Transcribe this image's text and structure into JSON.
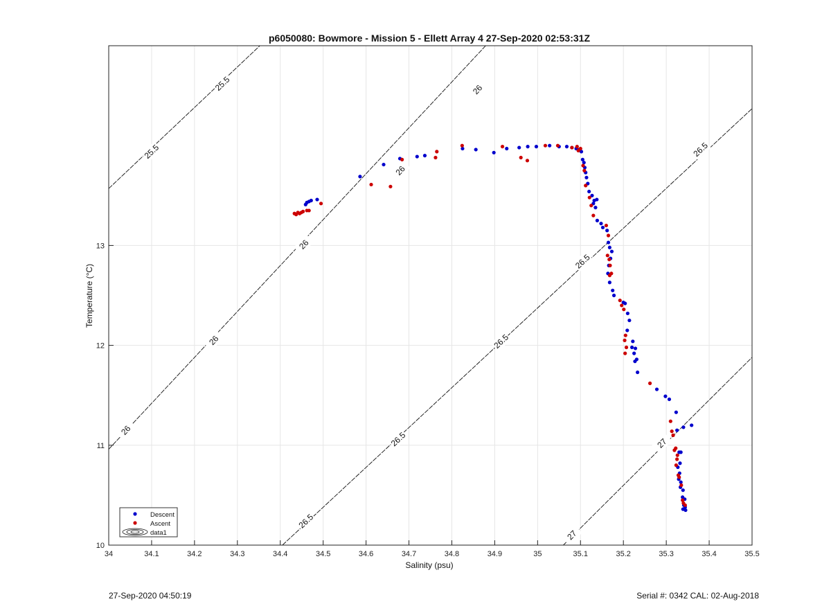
{
  "chart_data": {
    "type": "scatter",
    "title": "p6050080: Bowmore - Mission 5 - Ellett Array 4 27-Sep-2020 02:53:31Z",
    "xlabel": "Salinity (psu)",
    "ylabel": "Temperature (°C)",
    "xlim": [
      34,
      35.5
    ],
    "ylim": [
      10,
      15
    ],
    "xticks": [
      34,
      34.1,
      34.2,
      34.3,
      34.4,
      34.5,
      34.6,
      34.7,
      34.8,
      34.9,
      35,
      35.1,
      35.2,
      35.3,
      35.4,
      35.5
    ],
    "xtick_labels": [
      "34",
      "34.1",
      "34.2",
      "34.3",
      "34.4",
      "34.5",
      "34.6",
      "34.7",
      "34.8",
      "34.9",
      "35",
      "35.1",
      "35.2",
      "35.3",
      "35.4",
      "35.5"
    ],
    "yticks": [
      10,
      11,
      12,
      13
    ],
    "ytick_labels": [
      "10",
      "11",
      "12",
      "13"
    ],
    "grid": true,
    "legend_position": "bottom-left",
    "legend": [
      "Descent",
      "Ascent",
      "data1"
    ],
    "series": [
      {
        "name": "Descent",
        "color": "#0000cc",
        "points": [
          [
            34.467,
            13.44
          ],
          [
            34.462,
            13.43
          ],
          [
            34.472,
            13.45
          ],
          [
            34.459,
            13.41
          ],
          [
            34.486,
            13.46
          ],
          [
            34.586,
            13.69
          ],
          [
            34.641,
            13.81
          ],
          [
            34.679,
            13.87
          ],
          [
            34.719,
            13.89
          ],
          [
            34.737,
            13.9
          ],
          [
            34.825,
            13.97
          ],
          [
            34.856,
            13.96
          ],
          [
            34.898,
            13.93
          ],
          [
            34.928,
            13.97
          ],
          [
            34.957,
            13.98
          ],
          [
            34.977,
            13.99
          ],
          [
            34.997,
            13.99
          ],
          [
            35.028,
            14.0
          ],
          [
            35.05,
            13.99
          ],
          [
            35.068,
            13.99
          ],
          [
            35.08,
            13.98
          ],
          [
            35.09,
            13.97
          ],
          [
            35.097,
            13.96
          ],
          [
            35.102,
            13.94
          ],
          [
            35.105,
            13.86
          ],
          [
            35.108,
            13.83
          ],
          [
            35.11,
            13.78
          ],
          [
            35.112,
            13.73
          ],
          [
            35.114,
            13.68
          ],
          [
            35.117,
            13.62
          ],
          [
            35.12,
            13.54
          ],
          [
            35.127,
            13.5
          ],
          [
            35.132,
            13.45
          ],
          [
            35.138,
            13.46
          ],
          [
            35.135,
            13.38
          ],
          [
            35.13,
            13.42
          ],
          [
            35.139,
            13.25
          ],
          [
            35.148,
            13.22
          ],
          [
            35.152,
            13.18
          ],
          [
            35.162,
            13.15
          ],
          [
            35.165,
            13.03
          ],
          [
            35.168,
            12.98
          ],
          [
            35.173,
            12.94
          ],
          [
            35.17,
            12.87
          ],
          [
            35.166,
            12.8
          ],
          [
            35.164,
            12.72
          ],
          [
            35.168,
            12.63
          ],
          [
            35.175,
            12.55
          ],
          [
            35.178,
            12.5
          ],
          [
            35.2,
            12.43
          ],
          [
            35.204,
            12.42
          ],
          [
            35.21,
            12.32
          ],
          [
            35.214,
            12.25
          ],
          [
            35.209,
            12.15
          ],
          [
            35.222,
            12.04
          ],
          [
            35.22,
            11.98
          ],
          [
            35.228,
            11.97
          ],
          [
            35.225,
            11.92
          ],
          [
            35.231,
            11.86
          ],
          [
            35.227,
            11.84
          ],
          [
            35.233,
            11.73
          ],
          [
            35.278,
            11.56
          ],
          [
            35.298,
            11.49
          ],
          [
            35.307,
            11.46
          ],
          [
            35.323,
            11.33
          ],
          [
            35.325,
            11.15
          ],
          [
            35.34,
            11.18
          ],
          [
            35.359,
            11.2
          ],
          [
            35.33,
            10.93
          ],
          [
            35.334,
            10.93
          ],
          [
            35.332,
            10.82
          ],
          [
            35.327,
            10.78
          ],
          [
            35.331,
            10.72
          ],
          [
            35.329,
            10.66
          ],
          [
            35.334,
            10.63
          ],
          [
            35.333,
            10.58
          ],
          [
            35.339,
            10.55
          ],
          [
            35.338,
            10.48
          ],
          [
            35.343,
            10.46
          ],
          [
            35.341,
            10.4
          ],
          [
            35.344,
            10.38
          ],
          [
            35.345,
            10.35
          ],
          [
            35.339,
            10.36
          ]
        ]
      },
      {
        "name": "Ascent",
        "color": "#cc0000",
        "points": [
          [
            34.433,
            13.32
          ],
          [
            34.437,
            13.31
          ],
          [
            34.441,
            13.33
          ],
          [
            34.445,
            13.32
          ],
          [
            34.449,
            13.33
          ],
          [
            34.453,
            13.34
          ],
          [
            34.462,
            13.35
          ],
          [
            34.467,
            13.35
          ],
          [
            34.495,
            13.42
          ],
          [
            34.612,
            13.61
          ],
          [
            34.657,
            13.59
          ],
          [
            34.684,
            13.86
          ],
          [
            34.762,
            13.88
          ],
          [
            34.765,
            13.94
          ],
          [
            34.824,
            14.0
          ],
          [
            34.918,
            13.99
          ],
          [
            34.961,
            13.88
          ],
          [
            34.976,
            13.85
          ],
          [
            35.018,
            14.0
          ],
          [
            35.047,
            14.0
          ],
          [
            35.08,
            13.98
          ],
          [
            35.092,
            13.99
          ],
          [
            35.095,
            13.95
          ],
          [
            35.1,
            13.97
          ],
          [
            35.106,
            13.8
          ],
          [
            35.109,
            13.75
          ],
          [
            35.112,
            13.6
          ],
          [
            35.121,
            13.48
          ],
          [
            35.125,
            13.4
          ],
          [
            35.13,
            13.3
          ],
          [
            35.16,
            13.2
          ],
          [
            35.165,
            13.1
          ],
          [
            35.163,
            12.9
          ],
          [
            35.167,
            12.86
          ],
          [
            35.169,
            12.8
          ],
          [
            35.172,
            12.72
          ],
          [
            35.168,
            12.7
          ],
          [
            35.192,
            12.45
          ],
          [
            35.196,
            12.4
          ],
          [
            35.201,
            12.36
          ],
          [
            35.205,
            12.1
          ],
          [
            35.203,
            12.05
          ],
          [
            35.207,
            11.98
          ],
          [
            35.204,
            11.92
          ],
          [
            35.262,
            11.62
          ],
          [
            35.313,
            11.14
          ],
          [
            35.316,
            11.1
          ],
          [
            35.31,
            11.24
          ],
          [
            35.322,
            10.97
          ],
          [
            35.319,
            10.95
          ],
          [
            35.326,
            10.9
          ],
          [
            35.325,
            10.86
          ],
          [
            35.323,
            10.8
          ],
          [
            35.328,
            10.7
          ],
          [
            35.33,
            10.68
          ],
          [
            35.335,
            10.6
          ],
          [
            35.338,
            10.45
          ],
          [
            35.34,
            10.42
          ],
          [
            35.344,
            10.4
          ]
        ]
      }
    ],
    "contours": [
      {
        "label": "25.5",
        "points": [
          [
            34.0,
            13.57
          ],
          [
            34.52,
            15.68
          ]
        ],
        "labels_at": [
          [
            34.1,
            13.94
          ],
          [
            34.265,
            14.62
          ]
        ]
      },
      {
        "label": "26",
        "points": [
          [
            34.0,
            10.96
          ],
          [
            35.005,
            15.58
          ]
        ],
        "labels_at": [
          [
            34.04,
            11.15
          ],
          [
            34.245,
            12.05
          ],
          [
            34.455,
            13.01
          ],
          [
            34.68,
            13.75
          ],
          [
            34.86,
            14.56
          ]
        ]
      },
      {
        "label": "26.5",
        "points": [
          [
            34.405,
            10.0
          ],
          [
            35.5,
            14.37
          ]
        ],
        "labels_at": [
          [
            34.46,
            10.24
          ],
          [
            34.675,
            11.06
          ],
          [
            34.915,
            12.04
          ],
          [
            35.105,
            12.84
          ],
          [
            35.38,
            13.96
          ]
        ]
      },
      {
        "label": "27",
        "points": [
          [
            35.06,
            10.0
          ],
          [
            35.5,
            11.88
          ]
        ],
        "labels_at": [
          [
            35.08,
            10.1
          ],
          [
            35.29,
            11.02
          ]
        ]
      }
    ]
  },
  "footer": {
    "left": "27-Sep-2020 04:50:19",
    "right": "Serial #: 0342  CAL: 02-Aug-2018"
  }
}
